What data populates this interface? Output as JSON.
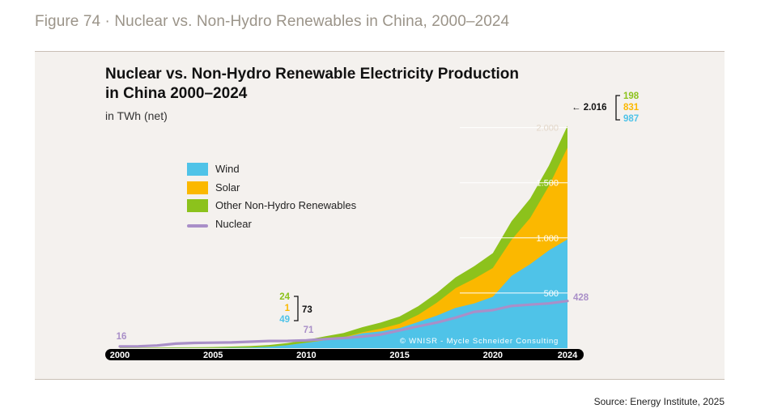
{
  "figure_caption": "Figure 74 · Nuclear vs. Non-Hydro Renewables in China, 2000–2024",
  "source": "Source: Energy Institute, 2025",
  "watermark": "© WNISR - Mycle Schneider Consulting",
  "colors": {
    "wind": "#4fc3e8",
    "solar": "#fbb800",
    "other": "#8cc21c",
    "nuclear": "#a98fc8",
    "axis": "#000000",
    "panel": "#f4f1ee"
  },
  "chart_data": {
    "type": "area",
    "title_line1": "Nuclear vs. Non-Hydro Renewable Electricity Production",
    "title_line2": "in China 2000–2024",
    "ylabel": "in TWh (net)",
    "ylim": [
      0,
      2100
    ],
    "yticks": [
      500,
      1000,
      1500,
      2000
    ],
    "ytick_labels": [
      "500",
      "1.000",
      "1.500",
      "2.000"
    ],
    "xticks": [
      2000,
      2005,
      2010,
      2015,
      2020,
      2024
    ],
    "x": [
      2000,
      2001,
      2002,
      2003,
      2004,
      2005,
      2006,
      2007,
      2008,
      2009,
      2010,
      2011,
      2012,
      2013,
      2014,
      2015,
      2016,
      2017,
      2018,
      2019,
      2020,
      2021,
      2022,
      2023,
      2024
    ],
    "stack_order": [
      "Wind",
      "Solar",
      "Other Non-Hydro Renewables"
    ],
    "series": [
      {
        "name": "Wind",
        "key": "wind",
        "values": [
          1,
          1,
          1,
          2,
          2,
          2,
          4,
          6,
          13,
          27,
          49,
          72,
          96,
          135,
          153,
          181,
          238,
          295,
          366,
          405,
          466,
          656,
          762,
          886,
          987
        ]
      },
      {
        "name": "Solar",
        "key": "solar",
        "values": [
          0,
          0,
          0,
          0,
          0,
          0,
          0,
          0,
          0,
          0,
          1,
          3,
          4,
          9,
          24,
          40,
          65,
          118,
          178,
          224,
          261,
          327,
          418,
          584,
          831
        ]
      },
      {
        "name": "Other Non-Hydro Renewables",
        "key": "other",
        "values": [
          3,
          3,
          4,
          5,
          6,
          8,
          11,
          13,
          16,
          20,
          24,
          32,
          38,
          46,
          56,
          66,
          78,
          88,
          98,
          114,
          135,
          168,
          176,
          185,
          198
        ]
      },
      {
        "name": "Nuclear",
        "key": "nuclear",
        "type": "line",
        "values": [
          16,
          17,
          24,
          41,
          48,
          50,
          52,
          59,
          65,
          66,
          71,
          82,
          92,
          105,
          124,
          161,
          198,
          233,
          277,
          330,
          345,
          383,
          395,
          406,
          428
        ]
      }
    ],
    "annotations": {
      "y2010": {
        "other": "24",
        "solar": "1",
        "wind": "49",
        "total": "73",
        "nuclear": "71"
      },
      "y2024": {
        "total_arrow": "← 2.016",
        "other": "198",
        "solar": "831",
        "wind": "987",
        "nuclear": "428"
      },
      "nuclear_2000": "16"
    }
  }
}
